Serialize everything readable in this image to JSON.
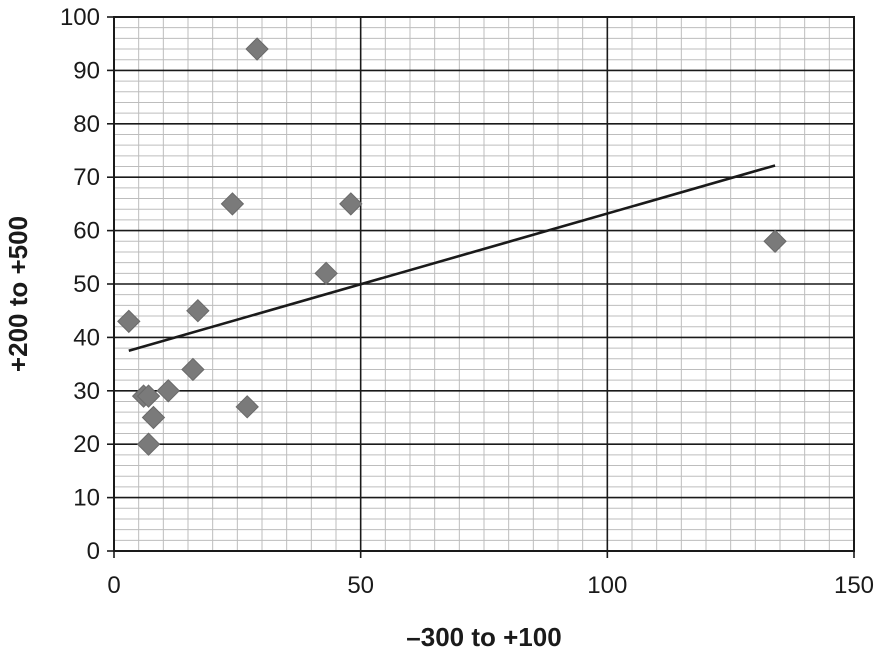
{
  "chart_data": {
    "type": "scatter",
    "title": "",
    "xlabel": "–300 to +100",
    "ylabel": "+200 to +500",
    "xlim": [
      0,
      150
    ],
    "ylim": [
      0,
      100
    ],
    "x_ticks": [
      "0",
      "50",
      "100",
      "150"
    ],
    "y_ticks": [
      "0",
      "10",
      "20",
      "30",
      "40",
      "50",
      "60",
      "70",
      "80",
      "90",
      "100"
    ],
    "grid": true,
    "minor_grid": true,
    "legend": "none",
    "marker": "diamond",
    "marker_color": "#7a7a7a",
    "series": [
      {
        "points": [
          {
            "x": 3,
            "y": 43
          },
          {
            "x": 6,
            "y": 29
          },
          {
            "x": 7,
            "y": 29
          },
          {
            "x": 7,
            "y": 20
          },
          {
            "x": 8,
            "y": 25
          },
          {
            "x": 11,
            "y": 30
          },
          {
            "x": 16,
            "y": 34
          },
          {
            "x": 17,
            "y": 45
          },
          {
            "x": 24,
            "y": 65
          },
          {
            "x": 27,
            "y": 27
          },
          {
            "x": 29,
            "y": 94
          },
          {
            "x": 43,
            "y": 52
          },
          {
            "x": 48,
            "y": 65
          },
          {
            "x": 134,
            "y": 58
          }
        ]
      }
    ],
    "trendline": {
      "type": "linear",
      "color": "#1a1a1a",
      "points": [
        {
          "x": 3,
          "y": 37.5
        },
        {
          "x": 134,
          "y": 72.2
        }
      ]
    }
  }
}
